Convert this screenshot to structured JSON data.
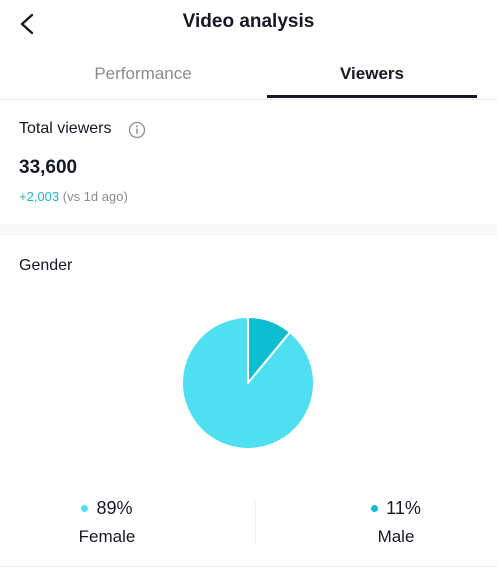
{
  "header": {
    "title": "Video analysis",
    "back_icon": "chevron-left-icon"
  },
  "tabs": [
    {
      "label": "Performance",
      "active": false
    },
    {
      "label": "Viewers",
      "active": true
    }
  ],
  "total_viewers": {
    "title": "Total viewers",
    "info_icon": "info-icon",
    "value": "33,600",
    "delta": "+2,003",
    "compare": " (vs 1d ago)"
  },
  "gender": {
    "title": "Gender",
    "segments": [
      {
        "label": "Female",
        "percent_label": "89%",
        "value": 89,
        "color": "#50dff0"
      },
      {
        "label": "Male",
        "percent_label": "11%",
        "value": 11,
        "color": "#0fbdd1"
      }
    ]
  },
  "colors": {
    "accent": "#20b8c5",
    "text_primary": "#161823",
    "text_secondary": "#8a8b91"
  },
  "chart_data": {
    "type": "pie",
    "categories": [
      "Female",
      "Male"
    ],
    "values": [
      89,
      11
    ],
    "colors": [
      "#50dff0",
      "#0fbdd1"
    ]
  }
}
